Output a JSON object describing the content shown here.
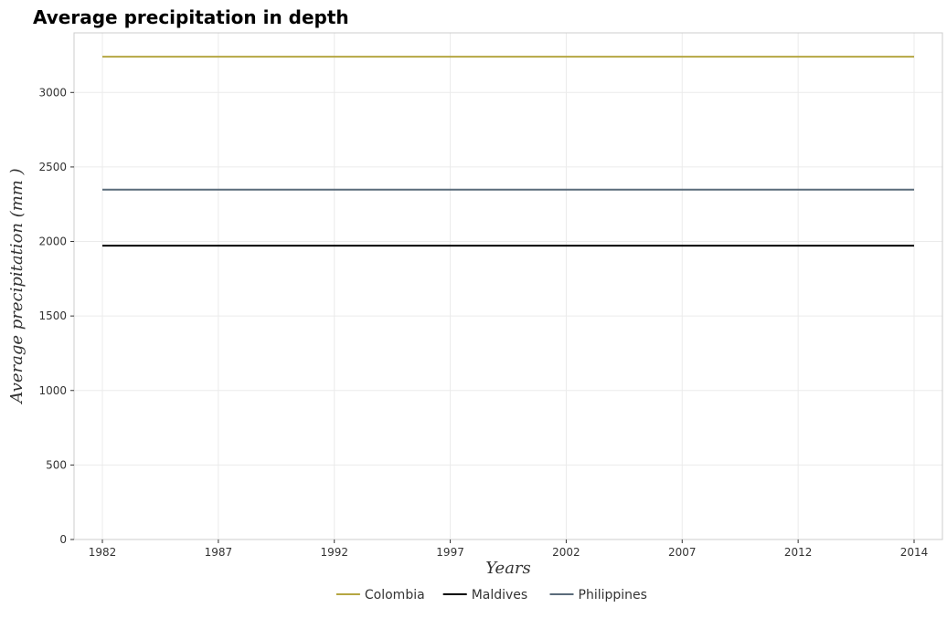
{
  "chart_data": {
    "type": "line",
    "title": "Average precipitation in depth",
    "xlabel": "Years",
    "ylabel": "Average precipitation (mm )",
    "x": [
      "1982",
      "1987",
      "1992",
      "1997",
      "2002",
      "2007",
      "2012",
      "2014"
    ],
    "yticks": [
      0,
      500,
      1000,
      1500,
      2000,
      2500,
      3000
    ],
    "ylim": [
      0,
      3400
    ],
    "grid": true,
    "legend": "bottom-center",
    "series": [
      {
        "name": "Colombia",
        "color": "#b5a642",
        "values": [
          3240,
          3240,
          3240,
          3240,
          3240,
          3240,
          3240,
          3240
        ]
      },
      {
        "name": "Maldives",
        "color": "#000000",
        "values": [
          1972,
          1972,
          1972,
          1972,
          1972,
          1972,
          1972,
          1972
        ]
      },
      {
        "name": "Philippines",
        "color": "#5a6b7a",
        "values": [
          2348,
          2348,
          2348,
          2348,
          2348,
          2348,
          2348,
          2348
        ]
      }
    ]
  }
}
